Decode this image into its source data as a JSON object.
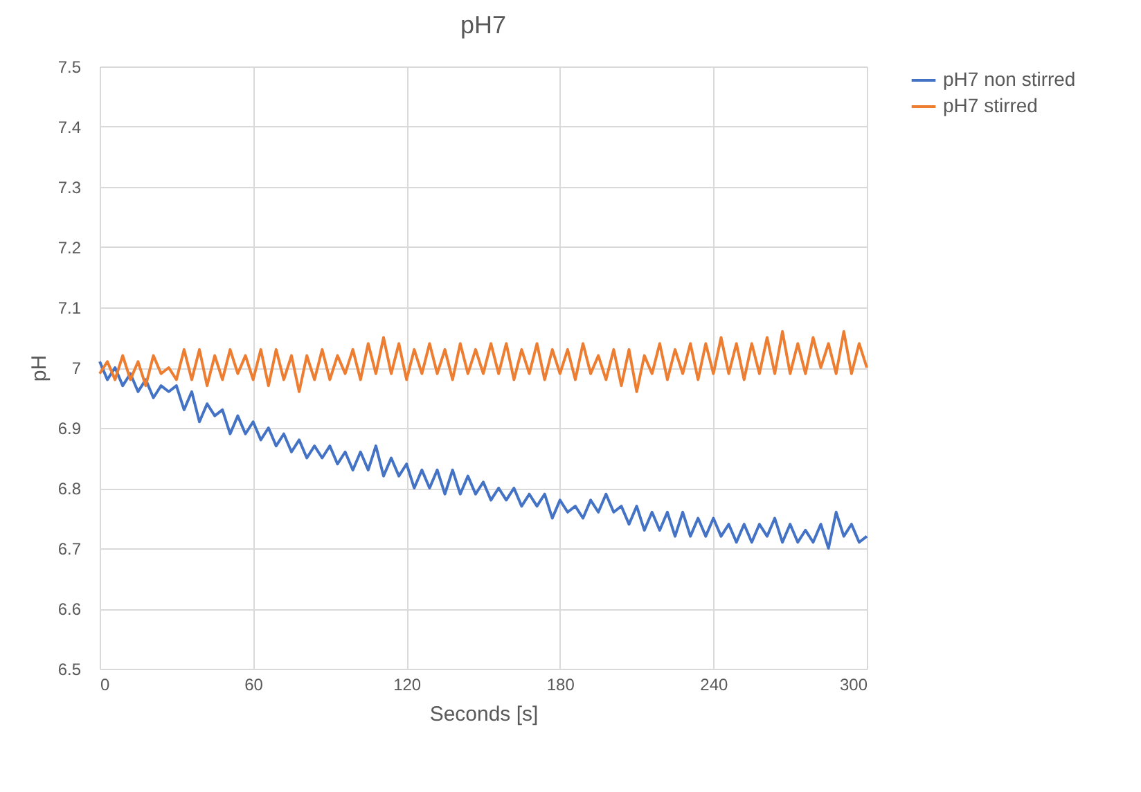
{
  "chart_data": {
    "type": "line",
    "title": "pH7",
    "xlabel": "Seconds [s]",
    "ylabel": "pH",
    "x": [
      0,
      3,
      6,
      9,
      12,
      15,
      18,
      21,
      24,
      27,
      30,
      33,
      36,
      39,
      42,
      45,
      48,
      51,
      54,
      57,
      60,
      63,
      66,
      69,
      72,
      75,
      78,
      81,
      84,
      87,
      90,
      93,
      96,
      99,
      102,
      105,
      108,
      111,
      114,
      117,
      120,
      123,
      126,
      129,
      132,
      135,
      138,
      141,
      144,
      147,
      150,
      153,
      156,
      159,
      162,
      165,
      168,
      171,
      174,
      177,
      180,
      183,
      186,
      189,
      192,
      195,
      198,
      201,
      204,
      207,
      210,
      213,
      216,
      219,
      222,
      225,
      228,
      231,
      234,
      237,
      240,
      243,
      246,
      249,
      252,
      255,
      258,
      261,
      264,
      267,
      270,
      273,
      276,
      279,
      282,
      285,
      288,
      291,
      294,
      297,
      300
    ],
    "series": [
      {
        "name": "pH7 non stirred",
        "color": "#4472c4",
        "values": [
          7.01,
          6.98,
          7.0,
          6.97,
          6.99,
          6.96,
          6.98,
          6.95,
          6.97,
          6.96,
          6.97,
          6.93,
          6.96,
          6.91,
          6.94,
          6.92,
          6.93,
          6.89,
          6.92,
          6.89,
          6.91,
          6.88,
          6.9,
          6.87,
          6.89,
          6.86,
          6.88,
          6.85,
          6.87,
          6.85,
          6.87,
          6.84,
          6.86,
          6.83,
          6.86,
          6.83,
          6.87,
          6.82,
          6.85,
          6.82,
          6.84,
          6.8,
          6.83,
          6.8,
          6.83,
          6.79,
          6.83,
          6.79,
          6.82,
          6.79,
          6.81,
          6.78,
          6.8,
          6.78,
          6.8,
          6.77,
          6.79,
          6.77,
          6.79,
          6.75,
          6.78,
          6.76,
          6.77,
          6.75,
          6.78,
          6.76,
          6.79,
          6.76,
          6.77,
          6.74,
          6.77,
          6.73,
          6.76,
          6.73,
          6.76,
          6.72,
          6.76,
          6.72,
          6.75,
          6.72,
          6.75,
          6.72,
          6.74,
          6.71,
          6.74,
          6.71,
          6.74,
          6.72,
          6.75,
          6.71,
          6.74,
          6.71,
          6.73,
          6.71,
          6.74,
          6.7,
          6.76,
          6.72,
          6.74,
          6.71,
          6.72
        ]
      },
      {
        "name": "pH7 stirred",
        "color": "#ed7d31",
        "values": [
          6.99,
          7.01,
          6.98,
          7.02,
          6.98,
          7.01,
          6.97,
          7.02,
          6.99,
          7.0,
          6.98,
          7.03,
          6.98,
          7.03,
          6.97,
          7.02,
          6.98,
          7.03,
          6.99,
          7.02,
          6.98,
          7.03,
          6.97,
          7.03,
          6.98,
          7.02,
          6.96,
          7.02,
          6.98,
          7.03,
          6.98,
          7.02,
          6.99,
          7.03,
          6.98,
          7.04,
          6.99,
          7.05,
          6.99,
          7.04,
          6.98,
          7.03,
          6.99,
          7.04,
          6.99,
          7.03,
          6.98,
          7.04,
          6.99,
          7.03,
          6.99,
          7.04,
          6.99,
          7.04,
          6.98,
          7.03,
          6.99,
          7.04,
          6.98,
          7.03,
          6.99,
          7.03,
          6.98,
          7.04,
          6.99,
          7.02,
          6.98,
          7.03,
          6.97,
          7.03,
          6.96,
          7.02,
          6.99,
          7.04,
          6.98,
          7.03,
          6.99,
          7.04,
          6.98,
          7.04,
          6.99,
          7.05,
          6.99,
          7.04,
          6.98,
          7.04,
          6.99,
          7.05,
          6.99,
          7.06,
          6.99,
          7.04,
          6.99,
          7.05,
          7.0,
          7.04,
          6.99,
          7.06,
          6.99,
          7.04,
          7.0
        ]
      }
    ],
    "xlim": [
      0,
      300
    ],
    "xticks": [
      0,
      60,
      120,
      180,
      240,
      300
    ],
    "ylim": [
      6.5,
      7.5
    ],
    "yticks": [
      6.5,
      6.6,
      6.7,
      6.8,
      6.9,
      7,
      7.1,
      7.2,
      7.3,
      7.4,
      7.5
    ],
    "grid": true,
    "legend": "right",
    "marker": "none",
    "line_style": "solid"
  }
}
